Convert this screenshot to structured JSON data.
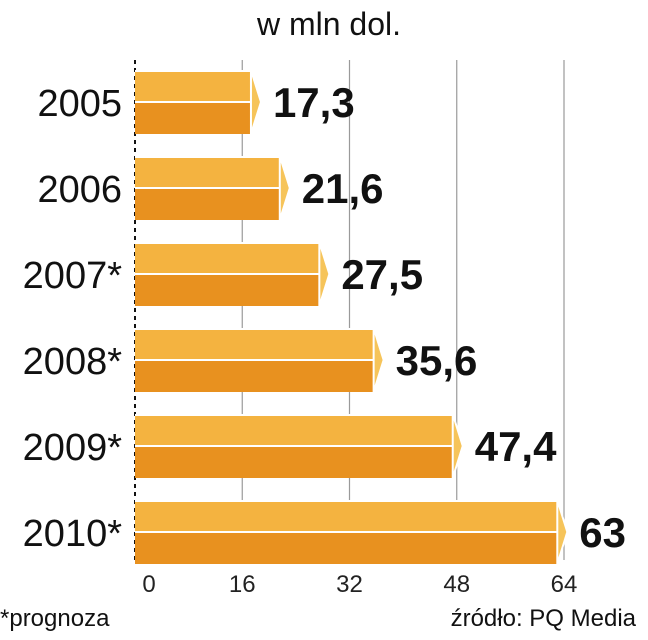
{
  "chart_data": {
    "type": "bar",
    "orientation": "horizontal",
    "subtitle": "w mln dol.",
    "categories": [
      "2005",
      "2006",
      "2007*",
      "2008*",
      "2009*",
      "2010*"
    ],
    "values": [
      17.3,
      21.6,
      27.5,
      35.6,
      47.4,
      63
    ],
    "value_labels": [
      "17,3",
      "21,6",
      "27,5",
      "35,6",
      "47,4",
      "63"
    ],
    "xticks": [
      0,
      16,
      32,
      48,
      64
    ],
    "xlim": [
      0,
      64
    ],
    "grid": true,
    "bar_colors": {
      "top": "#f4b340",
      "bottom": "#e8911f",
      "tip": "#f6c45a",
      "stroke": "#ffffff"
    },
    "footnote": "*prognoza",
    "source": "źródło: PQ Media"
  }
}
